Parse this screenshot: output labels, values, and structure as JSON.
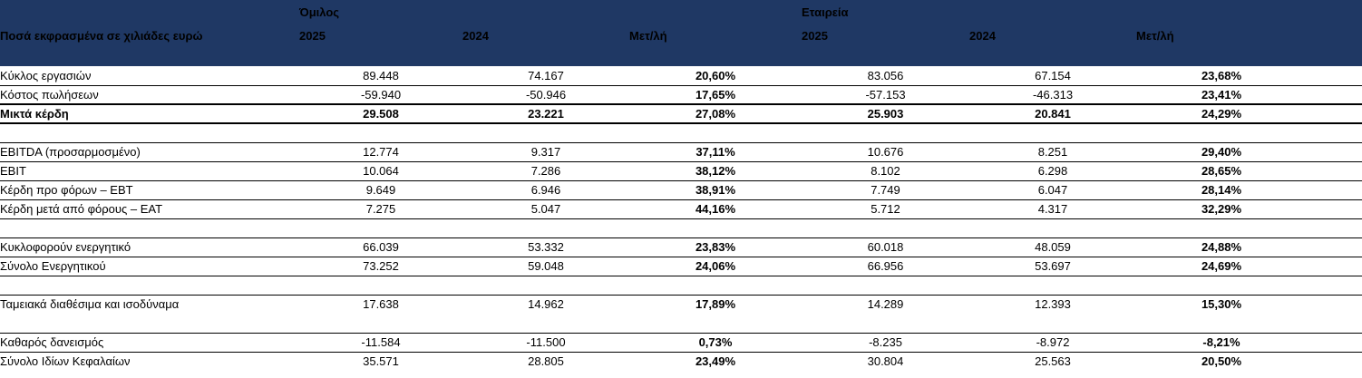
{
  "colors": {
    "header_bg": "#1F3864",
    "header_text": "#FFFFFF",
    "row_border": "#000000",
    "body_text": "#000000"
  },
  "header": {
    "unit_label": "Ποσά εκφρασμένα σε χιλιάδες ευρώ",
    "group_left": "Όμιλος",
    "group_right": "Εταιρεία",
    "columns": [
      "2025",
      "2024",
      "Μετ/λή",
      "2025",
      "2024",
      "Μετ/λή"
    ]
  },
  "table": {
    "rows": [
      {
        "type": "data",
        "label": "Κύκλος εργασιών",
        "values": [
          "89.448",
          "74.167",
          "20,60%",
          "83.056",
          "67.154",
          "23,68%"
        ]
      },
      {
        "type": "data",
        "label": "Κόστος πωλήσεων",
        "values": [
          "-59.940",
          "-50.946",
          "17,65%",
          "-57.153",
          "-46.313",
          "23,41%"
        ]
      },
      {
        "type": "total",
        "label": "Μικτά κέρδη",
        "values": [
          "29.508",
          "23.221",
          "27,08%",
          "25.903",
          "20.841",
          "24,29%"
        ]
      },
      {
        "type": "blank",
        "border": true
      },
      {
        "type": "data",
        "label": "EBITDA (προσαρμοσμένο)",
        "values": [
          "12.774",
          "9.317",
          "37,11%",
          "10.676",
          "8.251",
          "29,40%"
        ]
      },
      {
        "type": "data",
        "label": "EBIT",
        "values": [
          "10.064",
          "7.286",
          "38,12%",
          "8.102",
          "6.298",
          "28,65%"
        ]
      },
      {
        "type": "data",
        "label": "Κέρδη προ φόρων – EBT",
        "values": [
          "9.649",
          "6.946",
          "38,91%",
          "7.749",
          "6.047",
          "28,14%"
        ]
      },
      {
        "type": "data",
        "label": "Κέρδη μετά από φόρους – EAT",
        "values": [
          "7.275",
          "5.047",
          "44,16%",
          "5.712",
          "4.317",
          "32,29%"
        ]
      },
      {
        "type": "blank",
        "border": true
      },
      {
        "type": "data",
        "label": "Κυκλοφορούν ενεργητικό",
        "values": [
          "66.039",
          "53.332",
          "23,83%",
          "60.018",
          "48.059",
          "24,88%"
        ]
      },
      {
        "type": "data",
        "label": "Σύνολο Ενεργητικού",
        "values": [
          "73.252",
          "59.048",
          "24,06%",
          "66.956",
          "53.697",
          "24,69%"
        ]
      },
      {
        "type": "blank",
        "border": true
      },
      {
        "type": "data",
        "no_border": true,
        "label": "Ταμειακά διαθέσιμα και ισοδύναμα",
        "values": [
          "17.638",
          "14.962",
          "17,89%",
          "14.289",
          "12.393",
          "15,30%"
        ]
      },
      {
        "type": "blank",
        "border": true
      },
      {
        "type": "data",
        "label": "Καθαρός δανεισμός",
        "values": [
          "-11.584",
          "-11.500",
          "0,73%",
          "-8.235",
          "-8.972",
          "-8,21%"
        ]
      },
      {
        "type": "data",
        "last": true,
        "label": "Σύνολο Ιδίων Κεφαλαίων",
        "values": [
          "35.571",
          "28.805",
          "23,49%",
          "30.804",
          "25.563",
          "20,50%"
        ]
      }
    ]
  }
}
